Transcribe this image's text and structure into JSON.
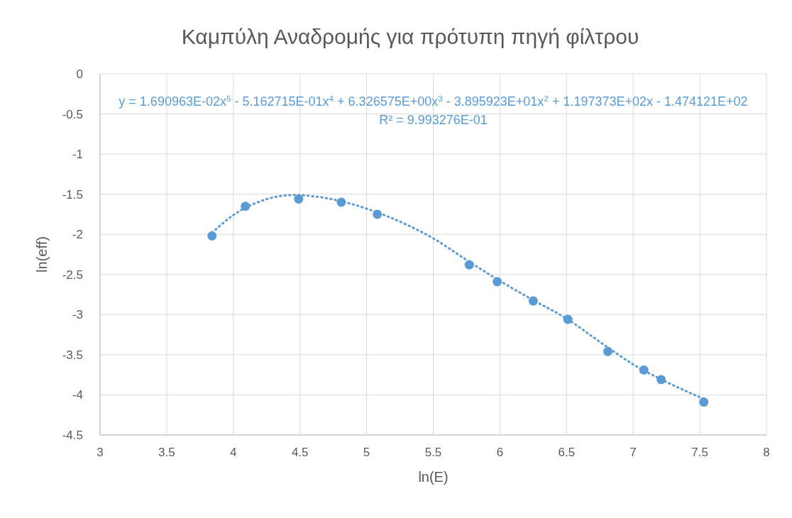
{
  "chart_data": {
    "type": "scatter",
    "title": "Καμπύλη Αναδρομής για πρότυπη πηγή φίλτρου",
    "xlabel": "ln(E)",
    "ylabel": "ln(eff)",
    "annotations": [
      "y = 1.690963E-02x$^{5}$ - 5.162715E-01x$^{4}$ + 6.326575E+00x$^{3}$ - 3.895923E+01x$^{2}$ + 1.197373E+02x - 1.474121E+02",
      "R² = 9.993276E-01"
    ],
    "xlim": [
      3,
      8
    ],
    "xticks": [
      3,
      3.5,
      4,
      4.5,
      5,
      5.5,
      6,
      6.5,
      7,
      7.5,
      8
    ],
    "ylim": [
      -4.5,
      0
    ],
    "yticks": [
      -4.5,
      -4,
      -3.5,
      -3,
      -2.5,
      -2,
      -1.5,
      -1,
      -0.5,
      0
    ],
    "grid": true,
    "series": [
      {
        "type": "scatter",
        "marker": "circle",
        "color": "#5b9bd5",
        "x": [
          3.84,
          4.09,
          4.49,
          4.81,
          5.08,
          5.77,
          5.98,
          6.25,
          6.51,
          6.81,
          7.08,
          7.21,
          7.53
        ],
        "values": [
          -2.02,
          -1.65,
          -1.56,
          -1.6,
          -1.75,
          -2.38,
          -2.59,
          -2.83,
          -3.06,
          -3.46,
          -3.69,
          -3.81,
          -4.09
        ]
      },
      {
        "type": "line",
        "marker": "none",
        "line_style": "dotted",
        "color": "#5b9bd5",
        "x": [
          3.84,
          4.0,
          4.2,
          4.45,
          4.7,
          5.0,
          5.3,
          5.5,
          5.75,
          6.0,
          6.25,
          6.5,
          6.75,
          7.0,
          7.25,
          7.53
        ],
        "values": [
          -1.98,
          -1.76,
          -1.59,
          -1.51,
          -1.55,
          -1.68,
          -1.88,
          -2.05,
          -2.32,
          -2.58,
          -2.82,
          -3.05,
          -3.34,
          -3.62,
          -3.84,
          -4.05
        ]
      }
    ]
  }
}
